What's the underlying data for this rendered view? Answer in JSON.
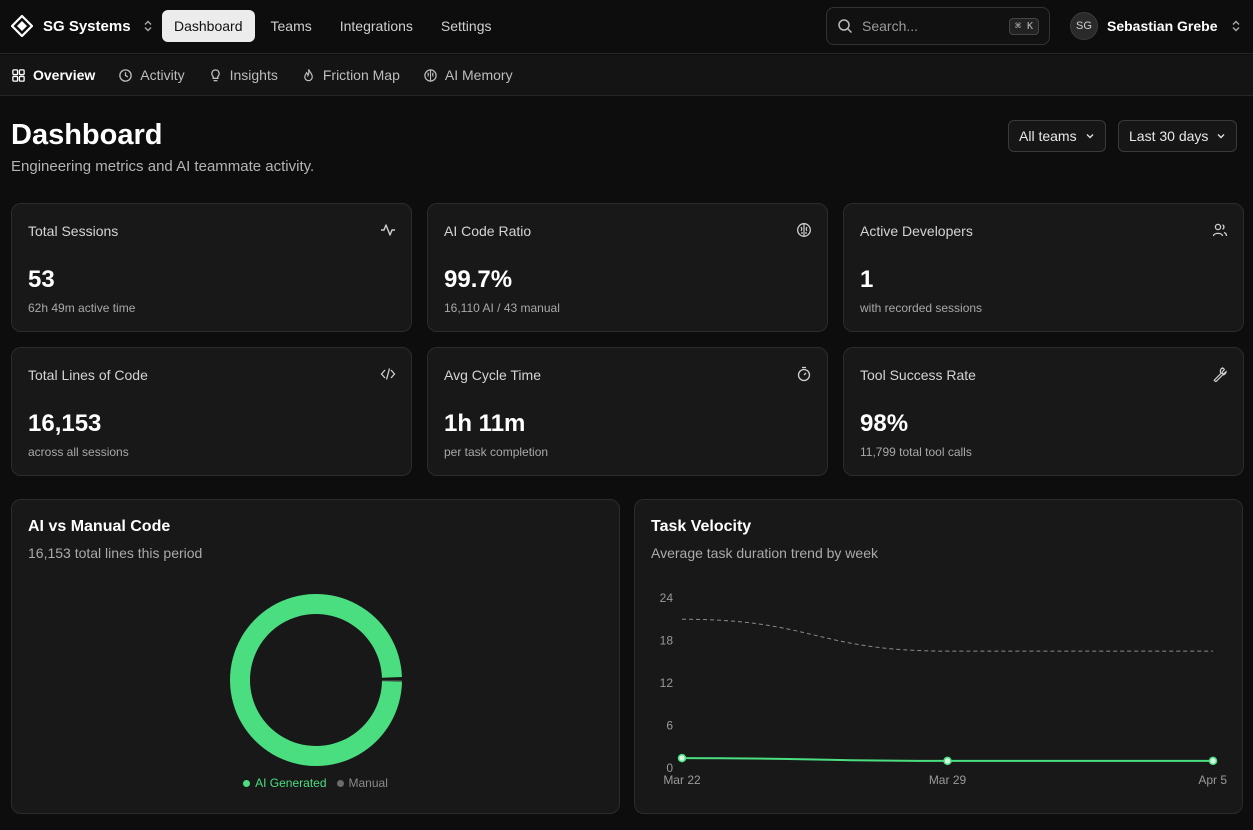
{
  "app": {
    "org_name": "SG Systems"
  },
  "nav": {
    "items": [
      "Dashboard",
      "Teams",
      "Integrations",
      "Settings"
    ],
    "active": "Dashboard"
  },
  "search": {
    "placeholder": "Search...",
    "shortcut": "⌘ K"
  },
  "user": {
    "initials": "SG",
    "name": "Sebastian Grebe"
  },
  "subnav": {
    "items": [
      "Overview",
      "Activity",
      "Insights",
      "Friction Map",
      "AI Memory"
    ],
    "active": "Overview"
  },
  "header": {
    "title": "Dashboard",
    "subtitle": "Engineering metrics and AI teammate activity."
  },
  "filters": {
    "team": "All teams",
    "range": "Last 30 days"
  },
  "stats": [
    {
      "title": "Total Sessions",
      "value": "53",
      "note": "62h 49m active time",
      "icon": "activity-icon"
    },
    {
      "title": "AI Code Ratio",
      "value": "99.7%",
      "note": "16,110 AI / 43 manual",
      "icon": "brain-icon"
    },
    {
      "title": "Active Developers",
      "value": "1",
      "note": "with recorded sessions",
      "icon": "users-icon"
    },
    {
      "title": "Total Lines of Code",
      "value": "16,153",
      "note": "across all sessions",
      "icon": "code-icon"
    },
    {
      "title": "Avg Cycle Time",
      "value": "1h 11m",
      "note": "per task completion",
      "icon": "timer-icon"
    },
    {
      "title": "Tool Success Rate",
      "value": "98%",
      "note": "11,799 total tool calls",
      "icon": "wrench-icon"
    }
  ],
  "donut_panel": {
    "title": "AI vs Manual Code",
    "subtitle": "16,153 total lines this period",
    "legend": [
      "AI Generated",
      "Manual"
    ]
  },
  "velocity_panel": {
    "title": "Task Velocity",
    "subtitle": "Average task duration trend by week"
  },
  "colors": {
    "accent": "#4ade80",
    "manual": "#6b6b6b",
    "background": "#0d0d0d",
    "card": "#181818"
  },
  "chart_data": [
    {
      "type": "pie",
      "categories": [
        "AI Generated",
        "Manual"
      ],
      "values": [
        16110,
        43
      ],
      "donut": true
    },
    {
      "type": "line",
      "x": [
        "Mar 22",
        "Mar 29",
        "Apr 5"
      ],
      "ylim": [
        0,
        24
      ],
      "yticks": [
        0,
        6,
        12,
        18,
        24
      ],
      "series": [
        {
          "values": [
            1.4,
            1.0,
            1.0
          ],
          "style": "solid"
        },
        {
          "values": [
            21.0,
            16.5,
            16.5
          ],
          "style": "dashed"
        }
      ]
    }
  ]
}
